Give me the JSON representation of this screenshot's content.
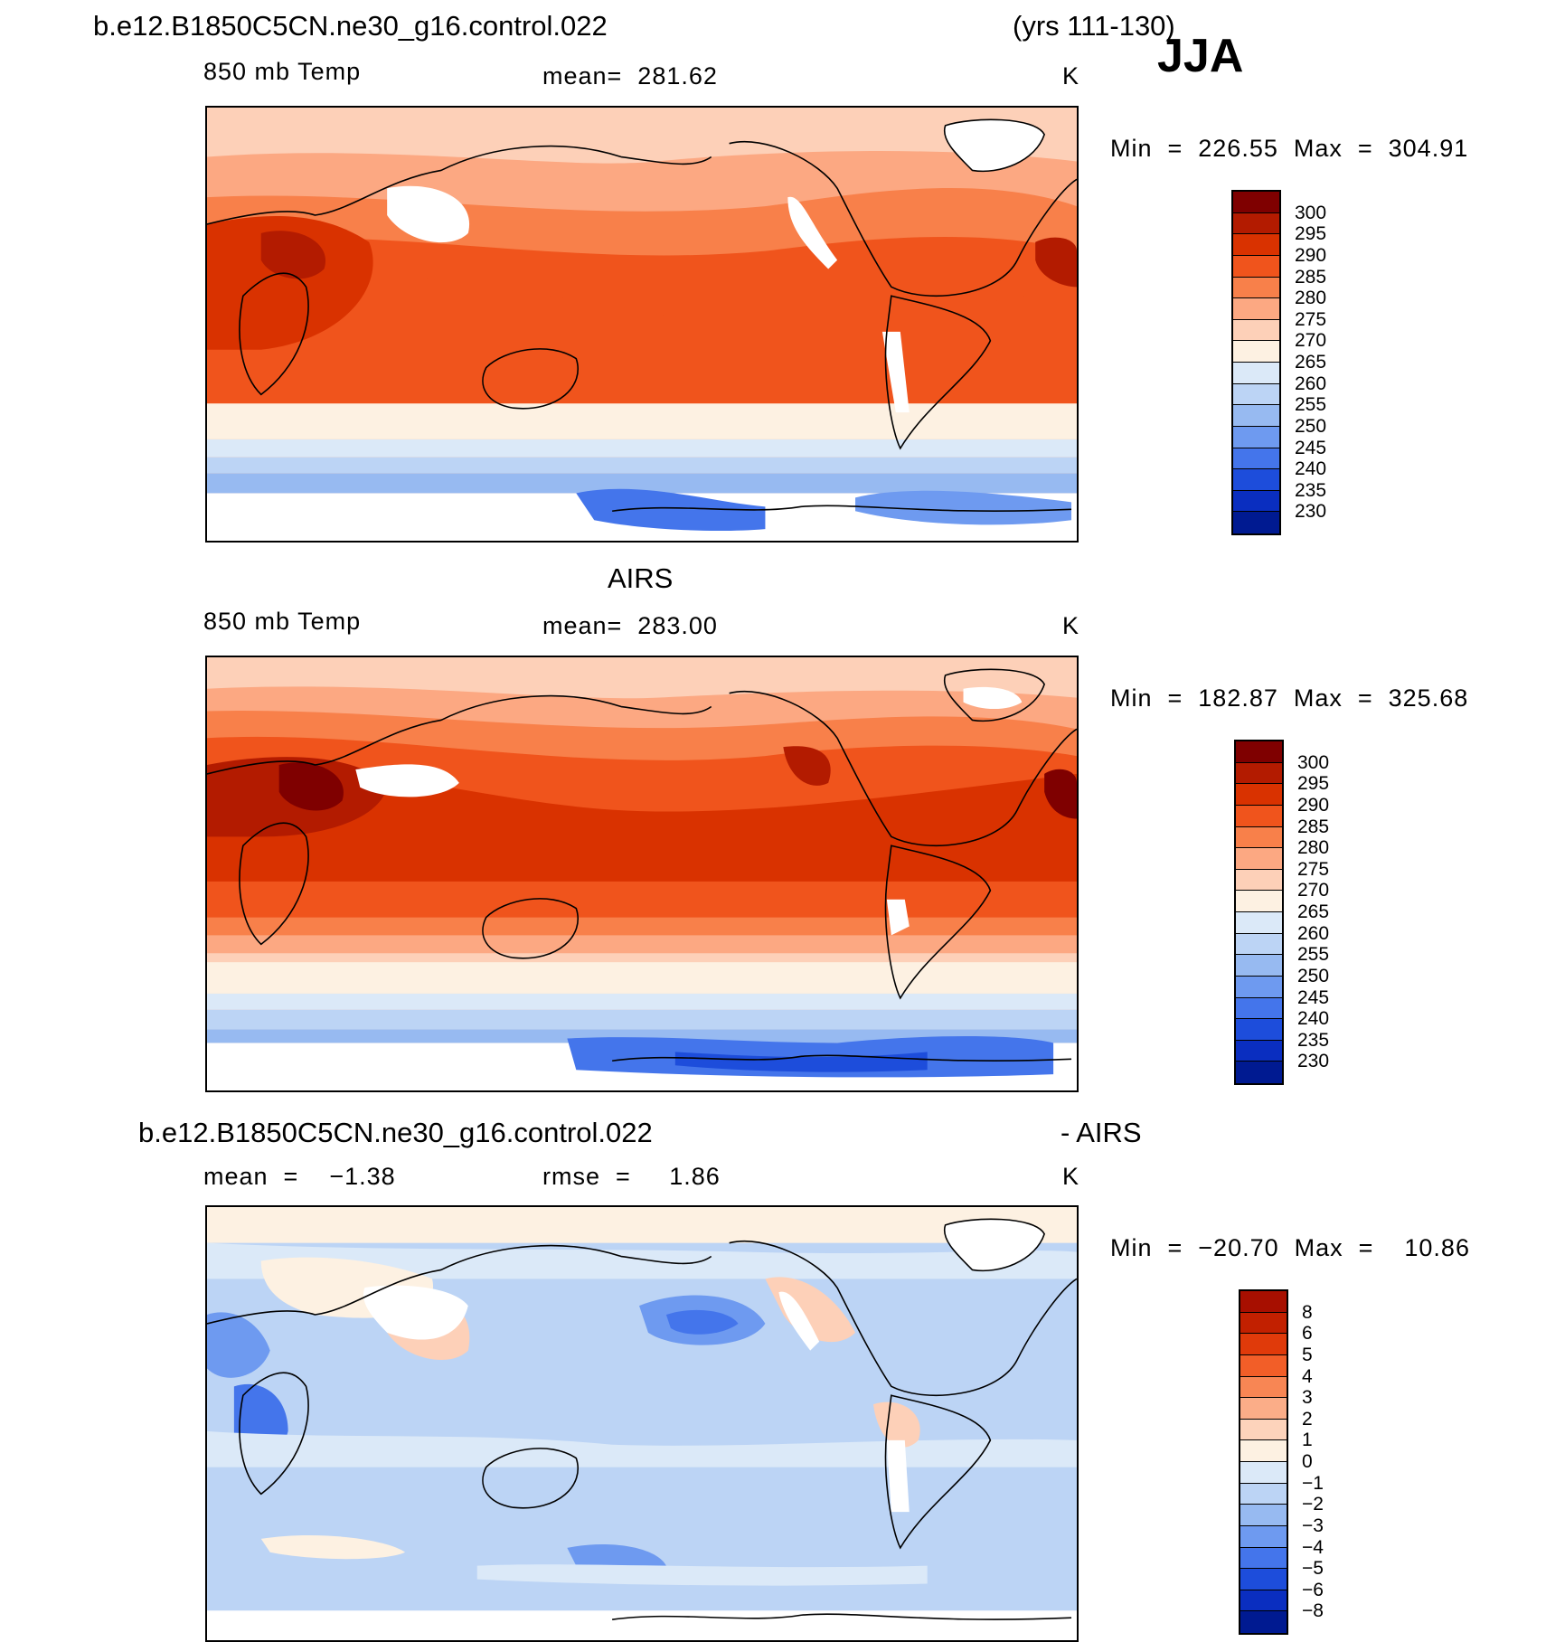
{
  "header": {
    "case_name": "b.e12.B1850C5CN.ne30_g16.control.022",
    "years": "(yrs 111-130)",
    "season": "JJA"
  },
  "panels": [
    {
      "title": "",
      "left_label": "850 mb Temp",
      "center_label": "mean=  281.62",
      "units": "K",
      "minmax": "Min  =  226.55  Max  =  304.91",
      "colors": [
        "#7f0000",
        "#b31b00",
        "#d93200",
        "#f0541c",
        "#f8804a",
        "#fca882",
        "#fdd0b8",
        "#fdf1e2",
        "#dbe9f8",
        "#bcd4f5",
        "#97baf1",
        "#6e9af0",
        "#4475eb",
        "#1d4ddb",
        "#0a2ec0",
        "#001a91"
      ],
      "levels": [
        "300",
        "295",
        "290",
        "285",
        "280",
        "275",
        "270",
        "265",
        "260",
        "255",
        "250",
        "245",
        "240",
        "235",
        "230"
      ]
    },
    {
      "title": "AIRS",
      "left_label": "850 mb Temp",
      "center_label": "mean=  283.00",
      "units": "K",
      "minmax": "Min  =  182.87  Max  =  325.68",
      "colors": [
        "#7f0000",
        "#b31b00",
        "#d93200",
        "#f0541c",
        "#f8804a",
        "#fca882",
        "#fdd0b8",
        "#fdf1e2",
        "#dbe9f8",
        "#bcd4f5",
        "#97baf1",
        "#6e9af0",
        "#4475eb",
        "#1d4ddb",
        "#0a2ec0",
        "#001a91"
      ],
      "levels": [
        "300",
        "295",
        "290",
        "285",
        "280",
        "275",
        "270",
        "265",
        "260",
        "255",
        "250",
        "245",
        "240",
        "235",
        "230"
      ]
    },
    {
      "title": "b.e12.B1850C5CN.ne30_g16.control.022",
      "title_right": "- AIRS",
      "left_label": "mean  =    −1.38",
      "center_label": "rmse  =     1.86",
      "units": "K",
      "minmax": "Min  =  −20.70  Max  =    10.86",
      "colors": [
        "#a70f00",
        "#c22000",
        "#e03a0a",
        "#f25e28",
        "#f88654",
        "#fbad88",
        "#fdd3bb",
        "#fdf1e2",
        "#dbe9f8",
        "#bcd4f5",
        "#97baf1",
        "#6e9af0",
        "#4475eb",
        "#1d4ddb",
        "#0a2ec0",
        "#001a91"
      ],
      "levels": [
        "8",
        "6",
        "5",
        "4",
        "3",
        "2",
        "1",
        "0",
        "−1",
        "−2",
        "−3",
        "−4",
        "−5",
        "−6",
        "−8"
      ]
    }
  ]
}
